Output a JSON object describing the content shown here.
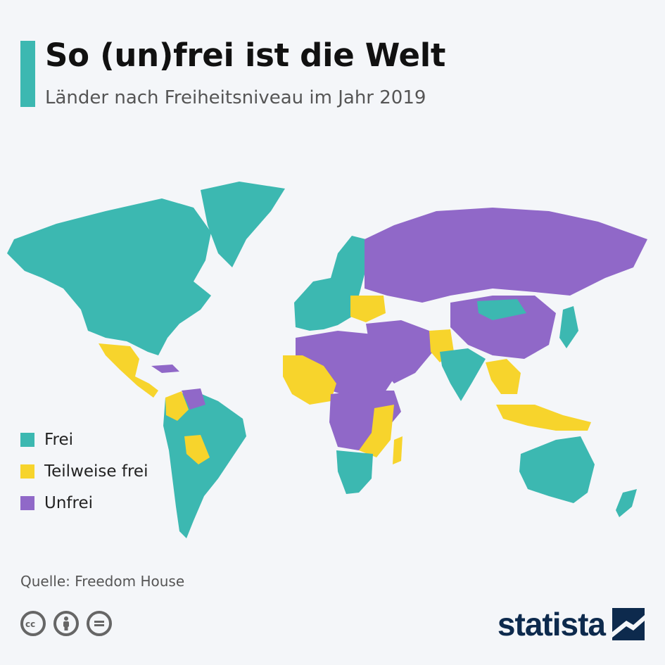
{
  "header": {
    "title": "So (un)frei ist die Welt",
    "subtitle": "Länder nach Freiheitsniveau im Jahr 2019"
  },
  "legend": {
    "items": [
      {
        "label": "Frei",
        "color": "#3cb8b1"
      },
      {
        "label": "Teilweise frei",
        "color": "#f7d42c"
      },
      {
        "label": "Unfrei",
        "color": "#9068c8"
      }
    ]
  },
  "colors": {
    "accent": "#3cb8b1",
    "free": "#3cb8b1",
    "partly_free": "#f7d42c",
    "not_free": "#9068c8",
    "brand": "#0d2a4d"
  },
  "footer": {
    "source": "Quelle: Freedom House",
    "license_icons": [
      "cc-icon",
      "attribution-icon",
      "no-derivatives-icon"
    ],
    "brand": "statista"
  }
}
